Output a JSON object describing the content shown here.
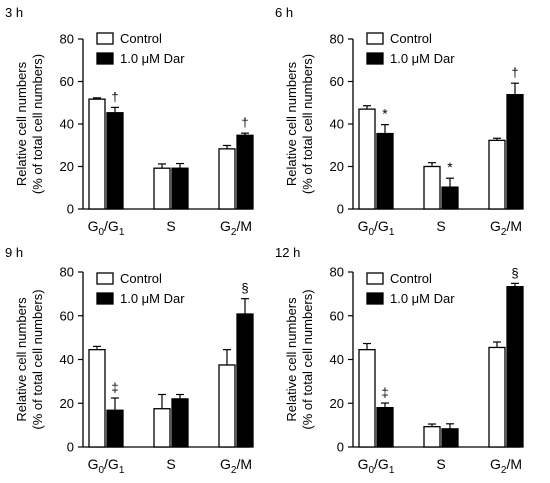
{
  "chart_data": [
    {
      "type": "bar",
      "panel_label": "3 h",
      "ylabel_lines": [
        "Relative cell numbers",
        "(% of total cell numbers)"
      ],
      "ylim": [
        0,
        80
      ],
      "yticks": [
        "0",
        "20",
        "40",
        "60",
        "80"
      ],
      "categories": [
        {
          "base": "G",
          "sub": "0",
          "mid": "/G",
          "sub2": "1"
        },
        {
          "base": "S"
        },
        {
          "base": "G",
          "sub": "2",
          "mid": "/M"
        }
      ],
      "legend": [
        "Control",
        "1.0 μM Dar"
      ],
      "series": [
        {
          "name": "Control",
          "fill": "#ffffff",
          "values": [
            51.7,
            19.2,
            28.3
          ],
          "errors": [
            0.6,
            2,
            1.6
          ]
        },
        {
          "name": "1.0 μM Dar",
          "fill": "#000000",
          "values": [
            45.3,
            19.2,
            34.7
          ],
          "errors": [
            2.5,
            2.2,
            1
          ]
        }
      ],
      "annotations": [
        "†",
        "",
        "†"
      ]
    },
    {
      "type": "bar",
      "panel_label": "6 h",
      "ylabel_lines": [
        "Relative cell numbers",
        "(% of total cell numbers)"
      ],
      "ylim": [
        0,
        80
      ],
      "yticks": [
        "0",
        "20",
        "40",
        "60",
        "80"
      ],
      "categories": [
        {
          "base": "G",
          "sub": "0",
          "mid": "/G",
          "sub2": "1"
        },
        {
          "base": "S"
        },
        {
          "base": "G",
          "sub": "2",
          "mid": "/M"
        }
      ],
      "legend": [
        "Control",
        "1.0 μM Dar"
      ],
      "series": [
        {
          "name": "Control",
          "fill": "#ffffff",
          "values": [
            47,
            20,
            32.3
          ],
          "errors": [
            1.6,
            1.8,
            1
          ]
        },
        {
          "name": "1.0 μM Dar",
          "fill": "#000000",
          "values": [
            35.5,
            10.3,
            53.8
          ],
          "errors": [
            4.2,
            4.2,
            5.4
          ]
        }
      ],
      "annotations": [
        "*",
        "*",
        "†"
      ]
    },
    {
      "type": "bar",
      "panel_label": "9 h",
      "ylabel_lines": [
        "Relative cell numbers",
        "(% of total cell numbers)"
      ],
      "ylim": [
        0,
        80
      ],
      "yticks": [
        "0",
        "20",
        "40",
        "60",
        "80"
      ],
      "categories": [
        {
          "base": "G",
          "sub": "0",
          "mid": "/G",
          "sub2": "1"
        },
        {
          "base": "S"
        },
        {
          "base": "G",
          "sub": "2",
          "mid": "/M"
        }
      ],
      "legend": [
        "Control",
        "1.0 μM Dar"
      ],
      "series": [
        {
          "name": "Control",
          "fill": "#ffffff",
          "values": [
            44.5,
            17.5,
            37.5
          ],
          "errors": [
            1.5,
            6.5,
            7
          ]
        },
        {
          "name": "1.0 μM Dar",
          "fill": "#000000",
          "values": [
            16.8,
            22,
            60.8
          ],
          "errors": [
            5.6,
            2,
            7
          ]
        }
      ],
      "annotations": [
        "‡",
        "",
        "§"
      ]
    },
    {
      "type": "bar",
      "panel_label": "12 h",
      "ylabel_lines": [
        "Relative cell numbers",
        "(% of total cell numbers)"
      ],
      "ylim": [
        0,
        80
      ],
      "yticks": [
        "0",
        "20",
        "40",
        "60",
        "80"
      ],
      "categories": [
        {
          "base": "G",
          "sub": "0",
          "mid": "/G",
          "sub2": "1"
        },
        {
          "base": "S"
        },
        {
          "base": "G",
          "sub": "2",
          "mid": "/M"
        }
      ],
      "legend": [
        "Control",
        "1.0 μM Dar"
      ],
      "series": [
        {
          "name": "Control",
          "fill": "#ffffff",
          "values": [
            44.5,
            9.3,
            45.5
          ],
          "errors": [
            2.8,
            1.2,
            2.5
          ]
        },
        {
          "name": "1.0 μM Dar",
          "fill": "#000000",
          "values": [
            18,
            8.3,
            73.3
          ],
          "errors": [
            2.1,
            2.3,
            1.5
          ]
        }
      ],
      "annotations": [
        "‡",
        "",
        "§"
      ]
    }
  ]
}
